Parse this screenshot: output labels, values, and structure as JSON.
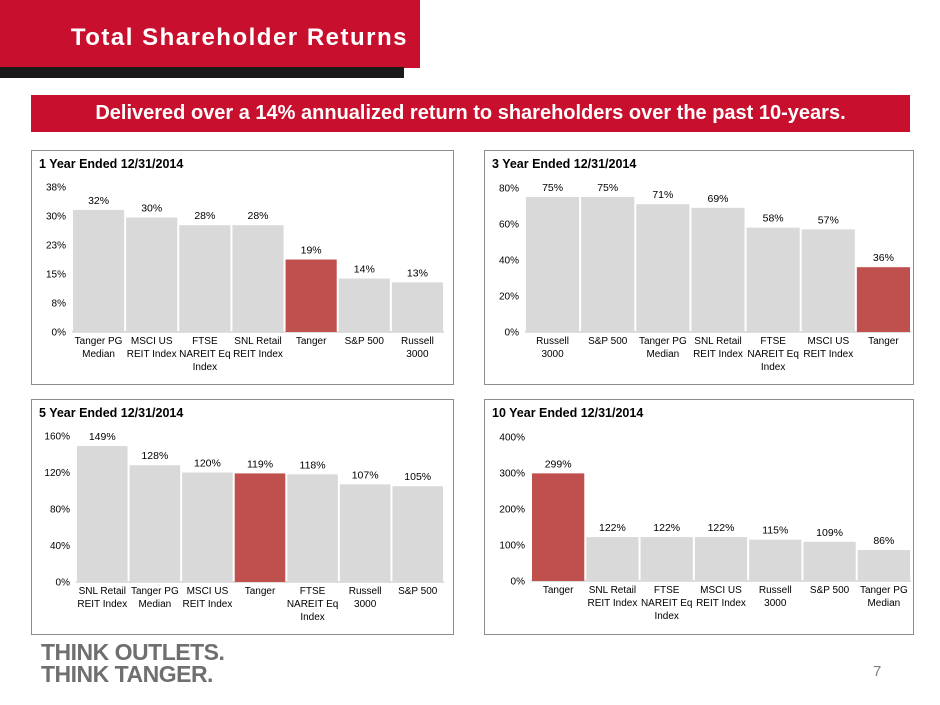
{
  "header": {
    "title": "Total Shareholder Returns"
  },
  "banner": {
    "text": "Delivered over a 14% annualized return to shareholders over the past 10-years."
  },
  "logo": {
    "line1": "THINK OUTLETS.",
    "line2": "THINK TANGER."
  },
  "page_number": "7",
  "colors": {
    "brand_red": "#c8102e",
    "bar_gray": "#d9d9d9",
    "bar_highlight": "#c0504d"
  },
  "chart_data": [
    {
      "type": "bar",
      "title": "1 Year Ended 12/31/2014",
      "categories": [
        [
          "Tanger PG",
          "Median"
        ],
        [
          "MSCI US",
          "REIT Index"
        ],
        [
          "FTSE",
          "NAREIT Eq",
          "Index"
        ],
        [
          "SNL Retail",
          "REIT Index"
        ],
        [
          "Tanger"
        ],
        [
          "S&P 500"
        ],
        [
          "Russell",
          "3000"
        ]
      ],
      "values": [
        32,
        30,
        28,
        28,
        19,
        14,
        13
      ],
      "value_labels": [
        "32%",
        "30%",
        "28%",
        "28%",
        "19%",
        "14%",
        "13%"
      ],
      "highlight_index": 4,
      "ylim": [
        0,
        38
      ],
      "yticks": [
        0,
        7.6,
        15.2,
        22.8,
        30.4,
        38
      ],
      "ytick_labels": [
        "0%",
        "8%",
        "15%",
        "23%",
        "30%",
        "38%"
      ]
    },
    {
      "type": "bar",
      "title": "3 Year Ended 12/31/2014",
      "categories": [
        [
          "Russell",
          "3000"
        ],
        [
          "S&P 500"
        ],
        [
          "Tanger PG",
          "Median"
        ],
        [
          "SNL Retail",
          "REIT Index"
        ],
        [
          "FTSE",
          "NAREIT Eq",
          "Index"
        ],
        [
          "MSCI US",
          "REIT Index"
        ],
        [
          "Tanger"
        ]
      ],
      "values": [
        75,
        75,
        71,
        69,
        58,
        57,
        36
      ],
      "value_labels": [
        "75%",
        "75%",
        "71%",
        "69%",
        "58%",
        "57%",
        "36%"
      ],
      "highlight_index": 6,
      "ylim": [
        0,
        80
      ],
      "yticks": [
        0,
        20,
        40,
        60,
        80
      ],
      "ytick_labels": [
        "0%",
        "20%",
        "40%",
        "60%",
        "80%"
      ]
    },
    {
      "type": "bar",
      "title": "5 Year Ended 12/31/2014",
      "categories": [
        [
          "SNL Retail",
          "REIT Index"
        ],
        [
          "Tanger PG",
          "Median"
        ],
        [
          "MSCI US",
          "REIT Index"
        ],
        [
          "Tanger"
        ],
        [
          "FTSE",
          "NAREIT Eq",
          "Index"
        ],
        [
          "Russell",
          "3000"
        ],
        [
          "S&P 500"
        ]
      ],
      "values": [
        149,
        128,
        120,
        119,
        118,
        107,
        105
      ],
      "value_labels": [
        "149%",
        "128%",
        "120%",
        "119%",
        "118%",
        "107%",
        "105%"
      ],
      "highlight_index": 3,
      "ylim": [
        0,
        160
      ],
      "yticks": [
        0,
        40,
        80,
        120,
        160
      ],
      "ytick_labels": [
        "0%",
        "40%",
        "80%",
        "120%",
        "160%"
      ]
    },
    {
      "type": "bar",
      "title": "10 Year Ended 12/31/2014",
      "categories": [
        [
          "Tanger"
        ],
        [
          "SNL Retail",
          "REIT Index"
        ],
        [
          "FTSE",
          "NAREIT Eq",
          "Index"
        ],
        [
          "MSCI US",
          "REIT Index"
        ],
        [
          "Russell",
          "3000"
        ],
        [
          "S&P 500"
        ],
        [
          "Tanger PG",
          "Median"
        ]
      ],
      "values": [
        299,
        122,
        122,
        122,
        115,
        109,
        86
      ],
      "value_labels": [
        "299%",
        "122%",
        "122%",
        "122%",
        "115%",
        "109%",
        "86%"
      ],
      "highlight_index": 0,
      "ylim": [
        0,
        400
      ],
      "yticks": [
        0,
        100,
        200,
        300,
        400
      ],
      "ytick_labels": [
        "0%",
        "100%",
        "200%",
        "300%",
        "400%"
      ]
    }
  ]
}
